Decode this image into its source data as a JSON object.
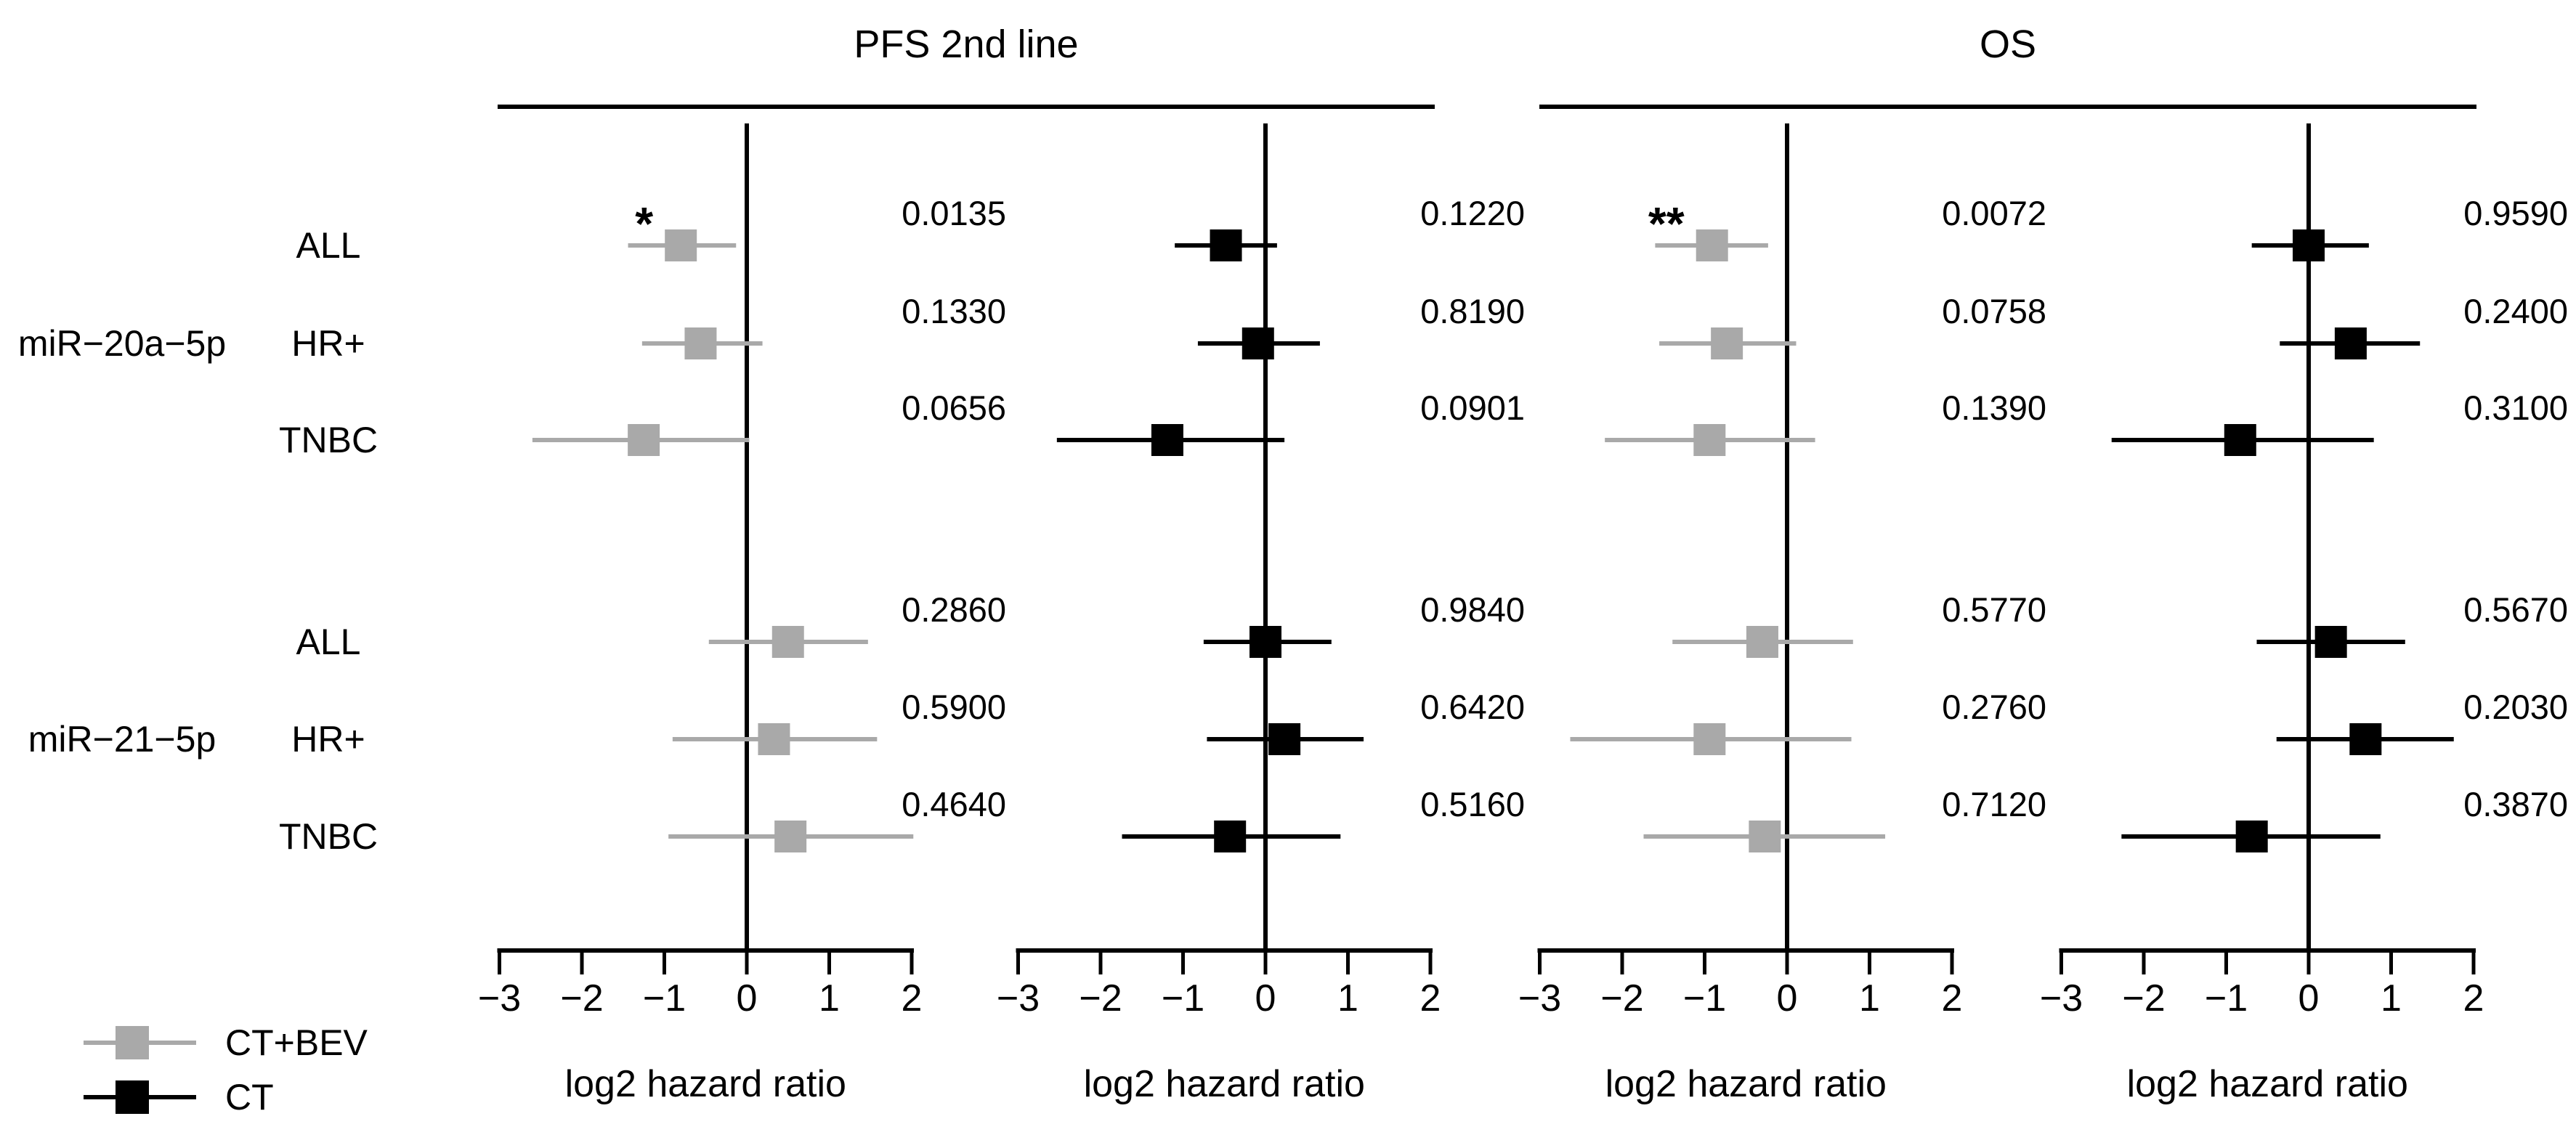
{
  "figure": {
    "columns": [
      {
        "title": "PFS 2nd line"
      },
      {
        "title": "OS"
      }
    ],
    "row_groups": [
      {
        "label": "miR−20a−5p",
        "rows": [
          "ALL",
          "HR+",
          "TNBC"
        ]
      },
      {
        "label": "miR−21−5p",
        "rows": [
          "ALL",
          "HR+",
          "TNBC"
        ]
      }
    ],
    "legend": {
      "items": [
        {
          "label": "CT+BEV",
          "color": "#a9a9a9"
        },
        {
          "label": "CT",
          "color": "#000000"
        }
      ]
    }
  },
  "chart_data": [
    {
      "type": "forest",
      "column_title": "PFS 2nd line",
      "treatment_arm": "CT+BEV",
      "marker_color": "#a9a9a9",
      "xlabel": "log2 hazard ratio",
      "xticks": [
        -3,
        -2,
        -1,
        0,
        1,
        2
      ],
      "xlim": [
        -3,
        2
      ],
      "rows": [
        {
          "group": "miR-20a-5p",
          "subgroup": "ALL",
          "estimate": -0.8,
          "ci_low": -1.44,
          "ci_high": -0.13,
          "p_value": "0.0135",
          "significance": "*"
        },
        {
          "group": "miR-20a-5p",
          "subgroup": "HR+",
          "estimate": -0.56,
          "ci_low": -1.27,
          "ci_high": 0.19,
          "p_value": "0.1330",
          "significance": ""
        },
        {
          "group": "miR-20a-5p",
          "subgroup": "TNBC",
          "estimate": -1.25,
          "ci_low": -2.6,
          "ci_high": 0.03,
          "p_value": "0.0656",
          "significance": ""
        },
        {
          "group": "miR-21-5p",
          "subgroup": "ALL",
          "estimate": 0.5,
          "ci_low": -0.46,
          "ci_high": 1.47,
          "p_value": "0.2860",
          "significance": ""
        },
        {
          "group": "miR-21-5p",
          "subgroup": "HR+",
          "estimate": 0.33,
          "ci_low": -0.9,
          "ci_high": 1.58,
          "p_value": "0.5900",
          "significance": ""
        },
        {
          "group": "miR-21-5p",
          "subgroup": "TNBC",
          "estimate": 0.53,
          "ci_low": -0.95,
          "ci_high": 2.02,
          "p_value": "0.4640",
          "significance": ""
        }
      ]
    },
    {
      "type": "forest",
      "column_title": "PFS 2nd line",
      "treatment_arm": "CT",
      "marker_color": "#000000",
      "xlabel": "log2 hazard ratio",
      "xticks": [
        -3,
        -2,
        -1,
        0,
        1,
        2
      ],
      "xlim": [
        -3,
        2
      ],
      "rows": [
        {
          "group": "miR-20a-5p",
          "subgroup": "ALL",
          "estimate": -0.48,
          "ci_low": -1.1,
          "ci_high": 0.14,
          "p_value": "0.1220",
          "significance": ""
        },
        {
          "group": "miR-20a-5p",
          "subgroup": "HR+",
          "estimate": -0.09,
          "ci_low": -0.82,
          "ci_high": 0.66,
          "p_value": "0.8190",
          "significance": ""
        },
        {
          "group": "miR-20a-5p",
          "subgroup": "TNBC",
          "estimate": -1.19,
          "ci_low": -2.53,
          "ci_high": 0.23,
          "p_value": "0.0901",
          "significance": ""
        },
        {
          "group": "miR-21-5p",
          "subgroup": "ALL",
          "estimate": 0.0,
          "ci_low": -0.75,
          "ci_high": 0.8,
          "p_value": "0.9840",
          "significance": ""
        },
        {
          "group": "miR-21-5p",
          "subgroup": "HR+",
          "estimate": 0.23,
          "ci_low": -0.71,
          "ci_high": 1.19,
          "p_value": "0.6420",
          "significance": ""
        },
        {
          "group": "miR-21-5p",
          "subgroup": "TNBC",
          "estimate": -0.43,
          "ci_low": -1.74,
          "ci_high": 0.91,
          "p_value": "0.5160",
          "significance": ""
        }
      ]
    },
    {
      "type": "forest",
      "column_title": "OS",
      "treatment_arm": "CT+BEV",
      "marker_color": "#a9a9a9",
      "xlabel": "log2 hazard ratio",
      "xticks": [
        -3,
        -2,
        -1,
        0,
        1,
        2
      ],
      "xlim": [
        -3,
        2
      ],
      "rows": [
        {
          "group": "miR-20a-5p",
          "subgroup": "ALL",
          "estimate": -0.91,
          "ci_low": -1.6,
          "ci_high": -0.23,
          "p_value": "0.0072",
          "significance": "**"
        },
        {
          "group": "miR-20a-5p",
          "subgroup": "HR+",
          "estimate": -0.73,
          "ci_low": -1.55,
          "ci_high": 0.11,
          "p_value": "0.0758",
          "significance": ""
        },
        {
          "group": "miR-20a-5p",
          "subgroup": "TNBC",
          "estimate": -0.94,
          "ci_low": -2.21,
          "ci_high": 0.34,
          "p_value": "0.1390",
          "significance": ""
        },
        {
          "group": "miR-21-5p",
          "subgroup": "ALL",
          "estimate": -0.3,
          "ci_low": -1.39,
          "ci_high": 0.8,
          "p_value": "0.5770",
          "significance": ""
        },
        {
          "group": "miR-21-5p",
          "subgroup": "HR+",
          "estimate": -0.94,
          "ci_low": -2.63,
          "ci_high": 0.78,
          "p_value": "0.2760",
          "significance": ""
        },
        {
          "group": "miR-21-5p",
          "subgroup": "TNBC",
          "estimate": -0.27,
          "ci_low": -1.74,
          "ci_high": 1.19,
          "p_value": "0.7120",
          "significance": ""
        }
      ]
    },
    {
      "type": "forest",
      "column_title": "OS",
      "treatment_arm": "CT",
      "marker_color": "#000000",
      "xlabel": "log2 hazard ratio",
      "xticks": [
        -3,
        -2,
        -1,
        0,
        1,
        2
      ],
      "xlim": [
        -3,
        2
      ],
      "rows": [
        {
          "group": "miR-20a-5p",
          "subgroup": "ALL",
          "estimate": 0.0,
          "ci_low": -0.69,
          "ci_high": 0.73,
          "p_value": "0.9590",
          "significance": ""
        },
        {
          "group": "miR-20a-5p",
          "subgroup": "HR+",
          "estimate": 0.51,
          "ci_low": -0.35,
          "ci_high": 1.35,
          "p_value": "0.2400",
          "significance": ""
        },
        {
          "group": "miR-20a-5p",
          "subgroup": "TNBC",
          "estimate": -0.83,
          "ci_low": -2.39,
          "ci_high": 0.79,
          "p_value": "0.3100",
          "significance": ""
        },
        {
          "group": "miR-21-5p",
          "subgroup": "ALL",
          "estimate": 0.27,
          "ci_low": -0.63,
          "ci_high": 1.17,
          "p_value": "0.5670",
          "significance": ""
        },
        {
          "group": "miR-21-5p",
          "subgroup": "HR+",
          "estimate": 0.69,
          "ci_low": -0.39,
          "ci_high": 1.76,
          "p_value": "0.2030",
          "significance": ""
        },
        {
          "group": "miR-21-5p",
          "subgroup": "TNBC",
          "estimate": -0.69,
          "ci_low": -2.27,
          "ci_high": 0.87,
          "p_value": "0.3870",
          "significance": ""
        }
      ]
    }
  ]
}
